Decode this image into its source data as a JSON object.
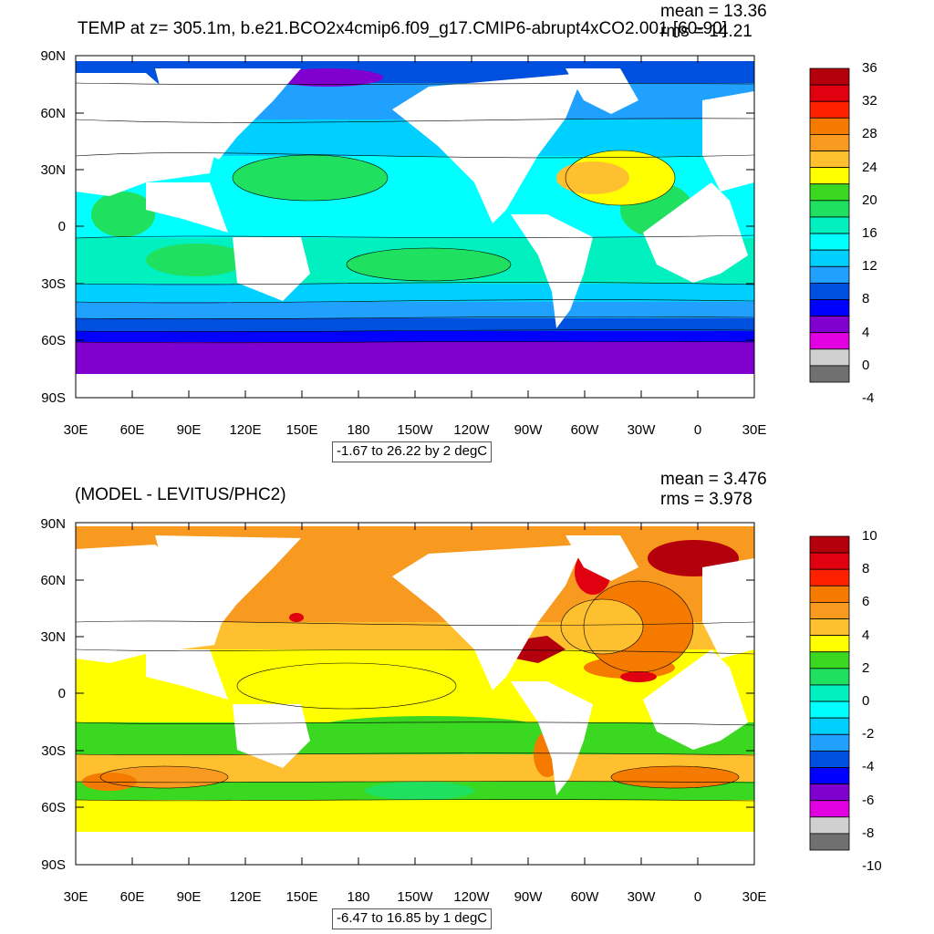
{
  "panels": [
    {
      "title": "TEMP at z= 305.1m, b.e21.BCO2x4cmip6.f09_g17.CMIP6-abrupt4xCO2.001 [60-90]",
      "mean": "mean = 13.36",
      "rms": "rms = 14.21",
      "contour_info": "-1.67 to 26.22 by 2 degC",
      "colorbar": {
        "labels": [
          "36",
          "32",
          "28",
          "24",
          "20",
          "16",
          "12",
          "8",
          "4",
          "0",
          "-4"
        ],
        "colors": [
          "#b4000c",
          "#e00010",
          "#ff2000",
          "#f47a00",
          "#f89a20",
          "#ffc030",
          "#ffff00",
          "#3ad820",
          "#20e060",
          "#00f0c0",
          "#00ffff",
          "#00d0ff",
          "#20a0ff",
          "#0050e0",
          "#0000ff",
          "#8000d0",
          "#e000e0",
          "#d0d0d0",
          "#707070"
        ]
      }
    },
    {
      "title": "(MODEL - LEVITUS/PHC2)",
      "mean": "mean = 3.476",
      "rms": "rms = 3.978",
      "contour_info": "-6.47 to 16.85 by 1 degC",
      "colorbar": {
        "labels": [
          "10",
          "8",
          "6",
          "4",
          "2",
          "0",
          "-2",
          "-4",
          "-6",
          "-8",
          "-10"
        ],
        "colors": [
          "#b4000c",
          "#e00010",
          "#ff2000",
          "#f47a00",
          "#f89a20",
          "#ffc030",
          "#ffff00",
          "#3ad820",
          "#20e060",
          "#00f0c0",
          "#00ffff",
          "#00d0ff",
          "#20a0ff",
          "#0050e0",
          "#0000ff",
          "#8000d0",
          "#e000e0",
          "#d0d0d0",
          "#707070"
        ]
      }
    }
  ],
  "axes": {
    "lat_labels": [
      "90N",
      "60N",
      "30N",
      "0",
      "30S",
      "60S",
      "90S"
    ],
    "lon_labels": [
      "30E",
      "60E",
      "90E",
      "120E",
      "150E",
      "180",
      "150W",
      "120W",
      "90W",
      "60W",
      "30W",
      "0",
      "30E"
    ]
  },
  "colors": {
    "land": "#ffffff",
    "frame": "#000000"
  }
}
